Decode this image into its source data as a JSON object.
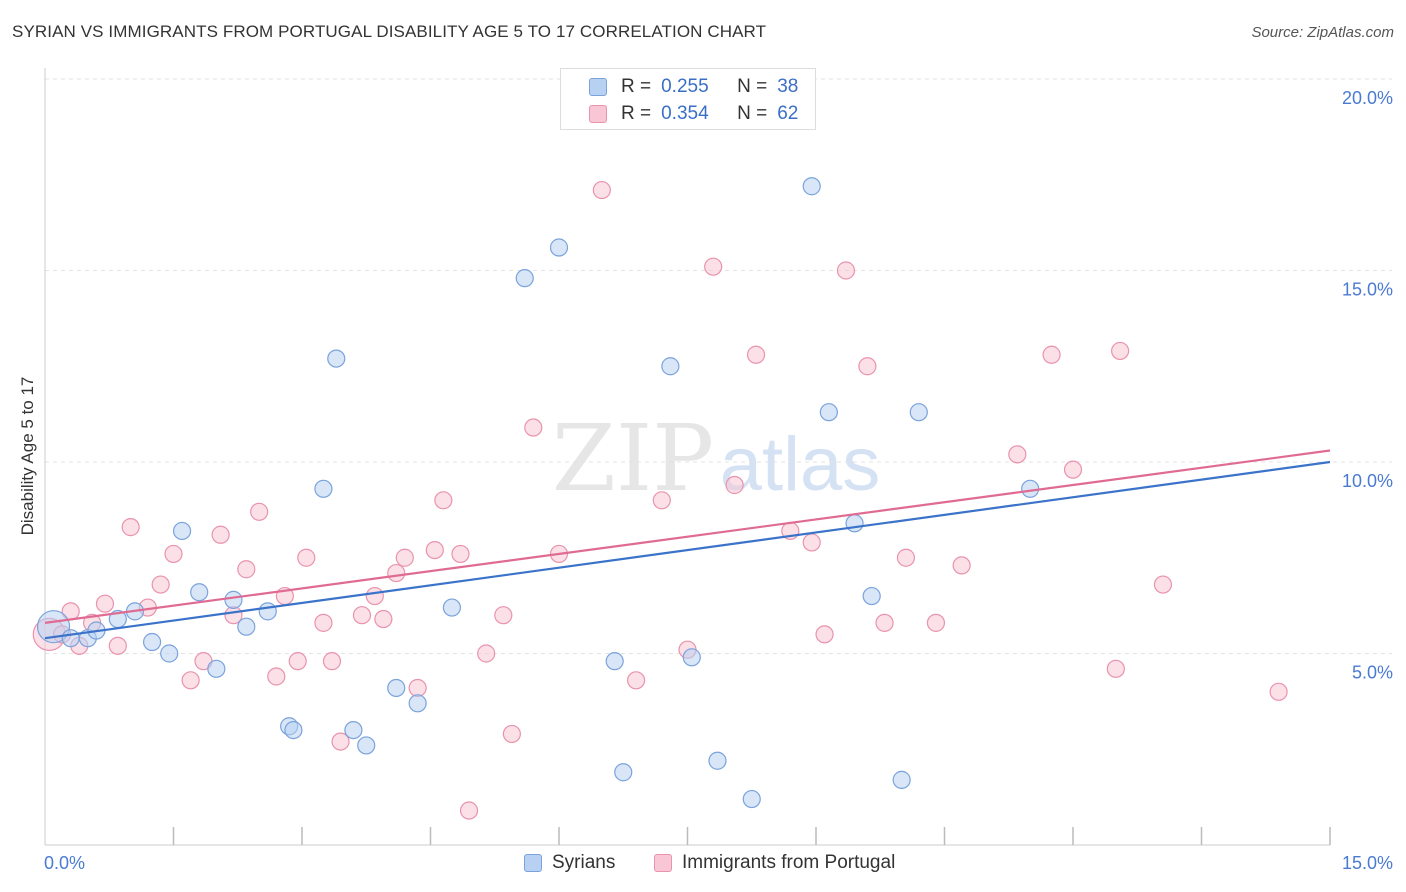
{
  "title": "SYRIAN VS IMMIGRANTS FROM PORTUGAL DISABILITY AGE 5 TO 17 CORRELATION CHART",
  "source": "Source: ZipAtlas.com",
  "watermark": {
    "zip": "ZIP",
    "atlas": "atlas"
  },
  "legend": {
    "r_label": "R =",
    "n_label": "N =",
    "rows": [
      {
        "r": "0.255",
        "n": "38"
      },
      {
        "r": "0.354",
        "n": "62"
      }
    ]
  },
  "bottom_legend": [
    "Syrians",
    "Immigrants from Portugal"
  ],
  "colors": {
    "syrians_fill": "#b8d1f3",
    "syrians_stroke": "#7aa3dc",
    "syrians_line": "#3a73c9",
    "portugal_fill": "#f8c6d5",
    "portugal_stroke": "#e993ad",
    "portugal_line": "#e06b92",
    "tick_label": "#4a7bd0"
  },
  "chart_data": {
    "type": "scatter",
    "title": "SYRIAN VS IMMIGRANTS FROM PORTUGAL DISABILITY AGE 5 TO 17 CORRELATION CHART",
    "xlabel": "",
    "ylabel": "Disability Age 5 to 17",
    "xlim": [
      0,
      15
    ],
    "ylim": [
      0,
      20
    ],
    "x_tick_labels": [
      "0.0%",
      "15.0%"
    ],
    "y_ticks": [
      5,
      10,
      15,
      20
    ],
    "y_tick_labels": [
      "5.0%",
      "10.0%",
      "15.0%",
      "20.0%"
    ],
    "x_minor_ticks": [
      1.5,
      3,
      4.5,
      6,
      7.5,
      9,
      10.5,
      12,
      13.5,
      15
    ],
    "series": [
      {
        "name": "Syrians",
        "R": 0.255,
        "N": 38,
        "trend": {
          "x": [
            0,
            15
          ],
          "y": [
            5.4,
            10.0
          ]
        },
        "points": [
          [
            0.1,
            5.7,
            16
          ],
          [
            0.3,
            5.4,
            10
          ],
          [
            0.5,
            5.4,
            10
          ],
          [
            0.6,
            5.6,
            10
          ],
          [
            0.85,
            5.9,
            10
          ],
          [
            1.05,
            6.1,
            10
          ],
          [
            1.25,
            5.3,
            10
          ],
          [
            1.45,
            5.0,
            10
          ],
          [
            1.6,
            8.2,
            10
          ],
          [
            1.8,
            6.6,
            10
          ],
          [
            2.0,
            4.6,
            10
          ],
          [
            2.2,
            6.4,
            10
          ],
          [
            2.35,
            5.7,
            10
          ],
          [
            2.6,
            6.1,
            10
          ],
          [
            2.85,
            3.1,
            10
          ],
          [
            2.9,
            3.0,
            10
          ],
          [
            3.25,
            9.3,
            10
          ],
          [
            3.4,
            12.7,
            10
          ],
          [
            3.6,
            3.0,
            10
          ],
          [
            3.75,
            2.6,
            10
          ],
          [
            4.1,
            4.1,
            10
          ],
          [
            4.35,
            3.7,
            10
          ],
          [
            4.75,
            6.2,
            10
          ],
          [
            5.6,
            14.8,
            10
          ],
          [
            6.0,
            15.6,
            10
          ],
          [
            6.65,
            4.8,
            10
          ],
          [
            6.75,
            1.9,
            10
          ],
          [
            7.3,
            12.5,
            10
          ],
          [
            7.55,
            4.9,
            10
          ],
          [
            7.85,
            2.2,
            10
          ],
          [
            8.25,
            1.2,
            10
          ],
          [
            8.95,
            17.2,
            10
          ],
          [
            9.15,
            11.3,
            10
          ],
          [
            9.45,
            8.4,
            10
          ],
          [
            9.65,
            6.5,
            10
          ],
          [
            10.0,
            1.7,
            10
          ],
          [
            10.2,
            11.3,
            10
          ],
          [
            11.5,
            9.3,
            10
          ]
        ]
      },
      {
        "name": "Immigrants from Portugal",
        "R": 0.354,
        "N": 62,
        "trend": {
          "x": [
            0,
            15
          ],
          "y": [
            5.8,
            10.3
          ]
        },
        "points": [
          [
            0.05,
            5.5,
            16
          ],
          [
            0.2,
            5.5,
            10
          ],
          [
            0.3,
            6.1,
            10
          ],
          [
            0.4,
            5.2,
            10
          ],
          [
            0.55,
            5.8,
            10
          ],
          [
            0.7,
            6.3,
            10
          ],
          [
            0.85,
            5.2,
            10
          ],
          [
            1.0,
            8.3,
            10
          ],
          [
            1.2,
            6.2,
            10
          ],
          [
            1.35,
            6.8,
            10
          ],
          [
            1.5,
            7.6,
            10
          ],
          [
            1.7,
            4.3,
            10
          ],
          [
            1.85,
            4.8,
            10
          ],
          [
            2.05,
            8.1,
            10
          ],
          [
            2.2,
            6.0,
            10
          ],
          [
            2.35,
            7.2,
            10
          ],
          [
            2.5,
            8.7,
            10
          ],
          [
            2.7,
            4.4,
            10
          ],
          [
            2.8,
            6.5,
            10
          ],
          [
            2.95,
            4.8,
            10
          ],
          [
            3.05,
            7.5,
            10
          ],
          [
            3.25,
            5.8,
            10
          ],
          [
            3.35,
            4.8,
            10
          ],
          [
            3.45,
            2.7,
            10
          ],
          [
            3.7,
            6.0,
            10
          ],
          [
            3.85,
            6.5,
            10
          ],
          [
            3.95,
            5.9,
            10
          ],
          [
            4.1,
            7.1,
            10
          ],
          [
            4.2,
            7.5,
            10
          ],
          [
            4.35,
            4.1,
            10
          ],
          [
            4.55,
            7.7,
            10
          ],
          [
            4.65,
            9.0,
            10
          ],
          [
            4.85,
            7.6,
            10
          ],
          [
            4.95,
            0.9,
            10
          ],
          [
            5.15,
            5.0,
            10
          ],
          [
            5.35,
            6.0,
            10
          ],
          [
            5.45,
            2.9,
            10
          ],
          [
            5.7,
            10.9,
            10
          ],
          [
            6.0,
            7.6,
            10
          ],
          [
            6.5,
            17.1,
            10
          ],
          [
            6.9,
            4.3,
            10
          ],
          [
            7.2,
            9.0,
            10
          ],
          [
            7.5,
            5.1,
            10
          ],
          [
            7.8,
            15.1,
            10
          ],
          [
            8.05,
            9.4,
            10
          ],
          [
            8.3,
            12.8,
            10
          ],
          [
            8.7,
            8.2,
            10
          ],
          [
            8.95,
            7.9,
            10
          ],
          [
            9.1,
            5.5,
            10
          ],
          [
            9.35,
            15.0,
            10
          ],
          [
            9.6,
            12.5,
            10
          ],
          [
            9.8,
            5.8,
            10
          ],
          [
            10.05,
            7.5,
            10
          ],
          [
            10.4,
            5.8,
            10
          ],
          [
            10.7,
            7.3,
            10
          ],
          [
            11.35,
            10.2,
            10
          ],
          [
            11.75,
            12.8,
            10
          ],
          [
            12.0,
            9.8,
            10
          ],
          [
            12.5,
            4.6,
            10
          ],
          [
            12.55,
            12.9,
            10
          ],
          [
            13.05,
            6.8,
            10
          ],
          [
            14.4,
            4.0,
            10
          ]
        ]
      }
    ]
  }
}
